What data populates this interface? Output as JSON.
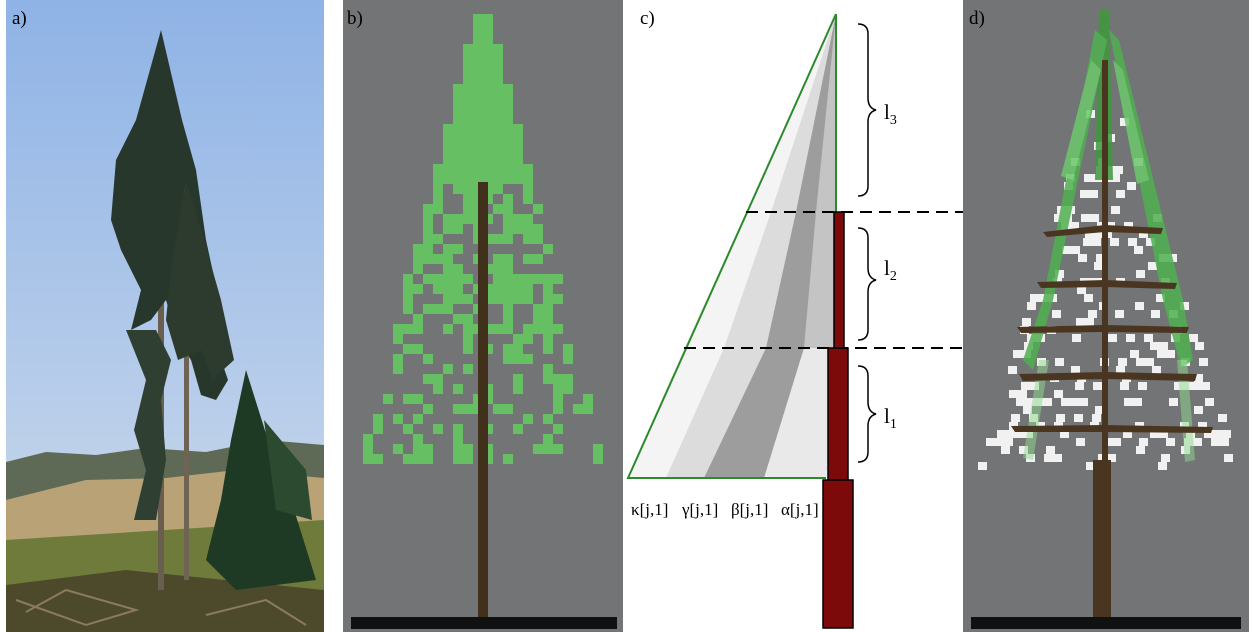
{
  "panels": {
    "a": {
      "label": "a)"
    },
    "b": {
      "label": "b)"
    },
    "c": {
      "label": "c)",
      "segments": [
        {
          "name": "l",
          "sub": "3"
        },
        {
          "name": "l",
          "sub": "2"
        },
        {
          "name": "l",
          "sub": "1"
        }
      ],
      "params": [
        "κ[j,1]",
        "γ[j,1]",
        "β[j,1]",
        "α[j,1]"
      ]
    },
    "d": {
      "label": "d)"
    }
  },
  "colors": {
    "sky_top": "#8fb3e6",
    "sky_bottom": "#c9dbef",
    "background_gray": "#737476",
    "needle_green": "#67bf63",
    "trunk_brown": "#40301c",
    "stem_red": "#7c0a0a",
    "ground_black": "#111111",
    "outline_green": "#2b8a2b"
  }
}
